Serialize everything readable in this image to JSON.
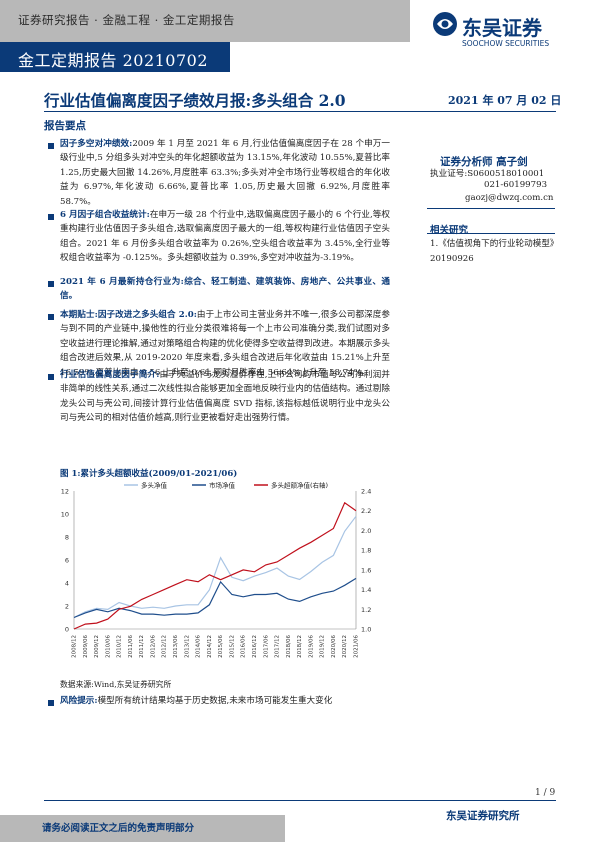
{
  "header": {
    "breadcrumb": "证券研究报告 · 金融工程 · 金工定期报告",
    "report_series": "金工定期报告 20210702",
    "logo_cn": "东吴证券",
    "logo_en": "SOOCHOW SECURITIES",
    "brand_color": "#0b3a78"
  },
  "title": "行业估值偏离度因子绩效月报:多头组合 2.0",
  "date": "2021 年 07 月 02 日",
  "summary_heading": "报告要点",
  "bullets": [
    {
      "label": "因子多空对冲绩效:",
      "text": "2009 年 1 月至 2021 年 6 月,行业估值偏离度因子在 28 个申万一级行业中,5 分组多头对冲空头的年化超额收益为 13.15%,年化波动 10.55%,夏普比率 1.25,历史最大回撤 14.26%,月度胜率 63.3%;多头对冲全市场行业等权组合的年化收益为 6.97%,年化波动 6.66%,夏普比率 1.05,历史最大回撤 6.92%,月度胜率 58.7%。"
    },
    {
      "label": "6 月因子组合收益统计:",
      "text": "在申万一级 28 个行业中,选取偏离度因子最小的 6 个行业,等权重构建行业估值因子多头组合,选取偏离度因子最大的一组,等权构建行业估值因子空头组合。2021 年 6 月份多头组合收益率为 0.26%,空头组合收益率为 3.45%,全行业等权组合收益率为 -0.125%。多头超额收益为 0.39%,多空对冲收益为-3.19%。"
    },
    {
      "label": "2021 年 6 月最新持仓行业为:综合、轻工制造、建筑装饰、房地产、公共事业、通信。",
      "text": ""
    },
    {
      "label": "本期贴士:因子改进之多头组合 2.0:",
      "text": "由于上市公司主营业务并不唯一,很多公司都深度参与到不同的产业链中,操他性的行业分类很难将每一个上市公司准确分类,我们试图对多空收益进行理论推解,通过对策略组合构建的优化使得多空收益得到改进。本期展示多头组合改进后效果,从 2019-2020 年度来看,多头组合改进后年化收益由 15.21%上升至 16.59%,夏普比率由 0.56 上升至 0.61,同时月胜率由 56.64%上升至 58.74%。"
    },
    {
      "label": "行业估值偏离度因子简介:",
      "text": "由于壳溢价与龙头溢价存在,上市公司的市值与公司净利润并非简单的线性关系,通过二次线性拟合能够更加全面地反映行业内的估值结构。通过剔除龙头公司与壳公司,间接计算行业估值偏离度 SVD 指标,该指标越低说明行业中龙头公司与壳公司的相对估值价越高,则行业更被看好走出强势行情。"
    }
  ],
  "analyst": {
    "title": "证券分析师   高子剑",
    "license": "执业证号:S0600518010001",
    "phone": "021-60199793",
    "email": "gaozj@dwzq.com.cn"
  },
  "related": {
    "heading": "相关研究",
    "items": [
      "1.《估值视角下的行业轮动模型》20190926"
    ]
  },
  "chart_data": {
    "type": "line",
    "title": "图 1:累计多头超额收益(2009/01-2021/06)",
    "legend": [
      "多头净值",
      "市场净值",
      "多头超额净值(右轴)"
    ],
    "legend_placement": "top",
    "colors": [
      "#a8c4e4",
      "#1f4e8c",
      "#c0101c"
    ],
    "x_ticks": [
      "2008/12",
      "2009/06",
      "2009/12",
      "2010/06",
      "2010/12",
      "2011/06",
      "2011/12",
      "2012/06",
      "2012/12",
      "2013/06",
      "2013/12",
      "2014/06",
      "2014/12",
      "2015/06",
      "2015/12",
      "2016/06",
      "2016/12",
      "2017/06",
      "2017/12",
      "2018/06",
      "2018/12",
      "2019/06",
      "2019/12",
      "2020/06",
      "2020/12",
      "2021/06"
    ],
    "y_left": {
      "range": [
        0,
        12
      ],
      "ticks": [
        0,
        2,
        4,
        6,
        8,
        10,
        12
      ]
    },
    "y_right": {
      "range": [
        1.0,
        2.4
      ],
      "ticks": [
        "1.0",
        "1.2",
        "1.4",
        "1.6",
        "1.8",
        "2.0",
        "2.2",
        "2.4"
      ]
    },
    "series": [
      {
        "name": "多头净值",
        "axis": "left",
        "values": [
          1.0,
          1.5,
          1.8,
          1.7,
          2.3,
          2.0,
          1.8,
          1.9,
          1.8,
          2.0,
          2.1,
          2.1,
          3.4,
          6.2,
          4.5,
          4.2,
          4.6,
          4.9,
          5.3,
          4.6,
          4.3,
          5.0,
          5.8,
          6.4,
          8.5,
          9.8
        ]
      },
      {
        "name": "市场净值",
        "axis": "left",
        "values": [
          1.0,
          1.4,
          1.7,
          1.5,
          1.8,
          1.6,
          1.3,
          1.3,
          1.2,
          1.3,
          1.3,
          1.4,
          2.1,
          4.1,
          3.0,
          2.8,
          3.0,
          3.0,
          3.1,
          2.6,
          2.4,
          2.8,
          3.1,
          3.3,
          3.8,
          4.4
        ]
      },
      {
        "name": "多头超额净值(右轴)",
        "axis": "right",
        "values": [
          1.0,
          1.05,
          1.06,
          1.1,
          1.2,
          1.23,
          1.3,
          1.35,
          1.4,
          1.45,
          1.5,
          1.48,
          1.55,
          1.5,
          1.55,
          1.6,
          1.58,
          1.65,
          1.68,
          1.75,
          1.82,
          1.88,
          1.95,
          2.02,
          2.28,
          2.2
        ]
      }
    ]
  },
  "source": "数据来源:Wind,东吴证券研究所",
  "risk": {
    "label": "风险提示:",
    "text": "模型所有统计结果均基于历史数据,未来市场可能发生重大变化"
  },
  "footer": {
    "page": "1 / 9",
    "institute": "东吴证券研究所",
    "disclaimer": "请务必阅读正文之后的免责声明部分"
  }
}
